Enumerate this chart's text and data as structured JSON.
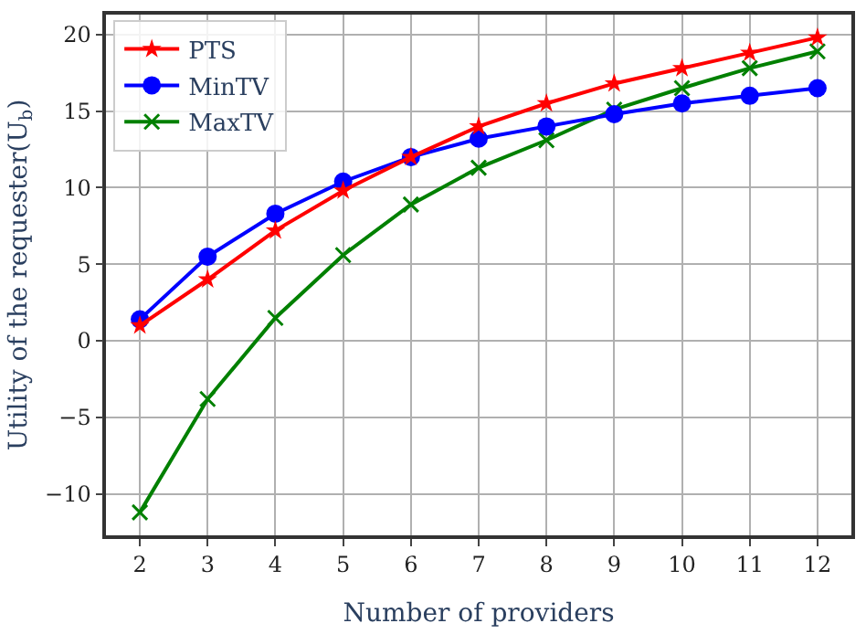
{
  "chart_data": {
    "type": "line",
    "xlabel": "Number of providers",
    "ylabel": "Utility of the requester(U$_{b}$)",
    "x": [
      2,
      3,
      4,
      5,
      6,
      7,
      8,
      9,
      10,
      11,
      12
    ],
    "series": [
      {
        "name": "PTS",
        "color": "#ff0000",
        "marker": "star",
        "values": [
          1.0,
          4.0,
          7.2,
          9.8,
          12.0,
          14.0,
          15.5,
          16.8,
          17.8,
          18.8,
          19.8
        ]
      },
      {
        "name": "MinTV",
        "color": "#0000ff",
        "marker": "circle",
        "values": [
          1.4,
          5.5,
          8.3,
          10.4,
          12.0,
          13.2,
          14.0,
          14.8,
          15.5,
          16.0,
          16.5
        ]
      },
      {
        "name": "MaxTV",
        "color": "#008000",
        "marker": "cross",
        "values": [
          -11.2,
          -3.8,
          1.5,
          5.6,
          8.9,
          11.3,
          13.1,
          15.1,
          16.5,
          17.8,
          18.9
        ]
      }
    ],
    "xlim": [
      1.5,
      12.5
    ],
    "xticks": [
      2,
      3,
      4,
      5,
      6,
      7,
      8,
      9,
      10,
      11,
      12
    ],
    "ylim": [
      -12.7,
      21.3
    ],
    "yticks": [
      -10,
      -5,
      0,
      5,
      10,
      15,
      20
    ],
    "grid": true,
    "legend": "top left",
    "line_style": "solid"
  }
}
